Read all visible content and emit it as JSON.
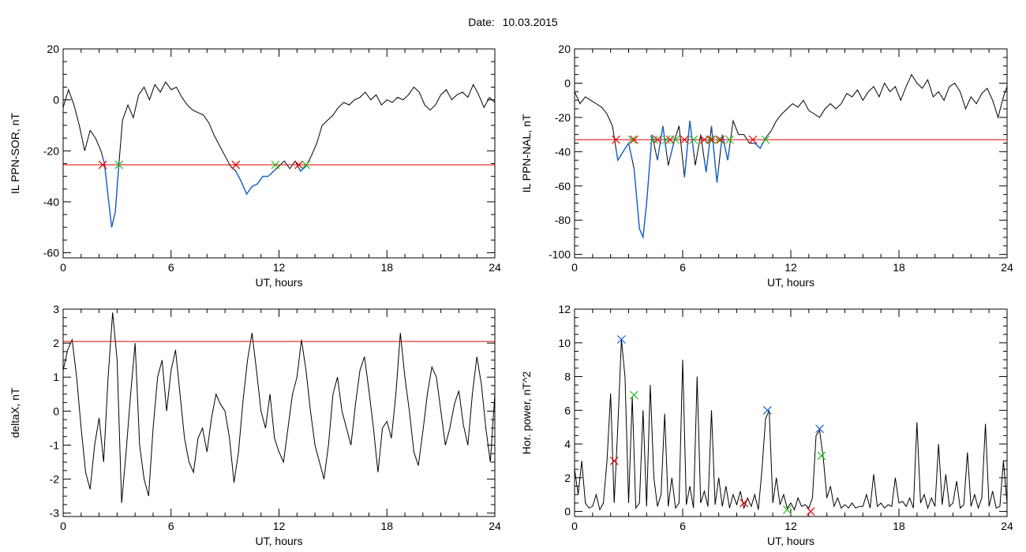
{
  "header": {
    "date_label": "Date:",
    "date_value": "10.03.2015"
  },
  "colors": {
    "data_line": "#000000",
    "event_segment": "#1560d0",
    "threshold": "#e00000",
    "start_marker": "#e00000",
    "end_marker": "#20c020",
    "peak_marker": "#1560d0"
  },
  "chart_data": [
    {
      "type": "line",
      "xlabel": "UT, hours",
      "ylabel": "IL PPN-SOR, nT",
      "xlim": [
        0,
        24
      ],
      "ylim": [
        -62,
        20
      ],
      "xticks": [
        0,
        6,
        12,
        18,
        24
      ],
      "yticks": [
        -60,
        -40,
        -20,
        0,
        20
      ],
      "threshold": -25.5,
      "series": [
        {
          "x": [
            0,
            0.3,
            0.6,
            0.9,
            1.2,
            1.5,
            1.8,
            2.1,
            2.3,
            2.5,
            2.7,
            2.9,
            3.1,
            3.3,
            3.6,
            3.9,
            4.2,
            4.5,
            4.8,
            5.1,
            5.4,
            5.7,
            6.0,
            6.3,
            6.6,
            6.9,
            7.2,
            7.5,
            7.8,
            8.1,
            8.4,
            8.7,
            9.0,
            9.3,
            9.6,
            9.9,
            10.2,
            10.5,
            10.8,
            11.1,
            11.4,
            11.7,
            12.0,
            12.3,
            12.6,
            12.9,
            13.2,
            13.5,
            13.8,
            14.1,
            14.4,
            14.7,
            15.0,
            15.3,
            15.6,
            15.9,
            16.2,
            16.5,
            16.8,
            17.1,
            17.4,
            17.7,
            18.0,
            18.3,
            18.6,
            18.9,
            19.2,
            19.5,
            19.8,
            20.1,
            20.4,
            20.7,
            21.0,
            21.3,
            21.6,
            21.9,
            22.2,
            22.5,
            22.8,
            23.1,
            23.4,
            23.7,
            24
          ],
          "y": [
            -3,
            4,
            -2,
            -10,
            -20,
            -12,
            -15,
            -20,
            -25,
            -38,
            -50,
            -44,
            -25,
            -8,
            -2,
            -7,
            2,
            5,
            0,
            6,
            3,
            7,
            4,
            5,
            1,
            -2,
            -4,
            -5,
            -6,
            -9,
            -14,
            -18,
            -22,
            -26,
            -28,
            -32,
            -37,
            -34,
            -33,
            -30,
            -30,
            -28,
            -26,
            -24,
            -27,
            -24,
            -28,
            -26,
            -22,
            -17,
            -10,
            -8,
            -6,
            -3,
            -1,
            -2,
            0,
            1,
            3,
            0,
            2,
            -2,
            0,
            -1,
            1,
            0,
            2,
            5,
            3,
            -2,
            -4,
            -2,
            2,
            4,
            0,
            2,
            3,
            1,
            6,
            2,
            -3,
            1,
            -1
          ]
        }
      ],
      "events": [
        {
          "start": 2.2,
          "end": 3.1
        },
        {
          "start": 9.6,
          "end": 11.8
        },
        {
          "start": 13.1,
          "end": 13.5
        }
      ]
    },
    {
      "type": "line",
      "xlabel": "UT, hours",
      "ylabel": "IL PPN-NAL, nT",
      "xlim": [
        0,
        24
      ],
      "ylim": [
        -102,
        20
      ],
      "xticks": [
        0,
        6,
        12,
        18,
        24
      ],
      "yticks": [
        -100,
        -80,
        -60,
        -40,
        -20,
        0,
        20
      ],
      "threshold": -33,
      "series": [
        {
          "x": [
            0,
            0.3,
            0.6,
            0.9,
            1.2,
            1.5,
            1.8,
            2.1,
            2.4,
            2.7,
            3.0,
            3.3,
            3.6,
            3.8,
            4.0,
            4.3,
            4.6,
            4.9,
            5.2,
            5.5,
            5.8,
            6.1,
            6.4,
            6.7,
            7.0,
            7.3,
            7.6,
            7.9,
            8.2,
            8.5,
            8.8,
            9.1,
            9.4,
            9.7,
            10.0,
            10.3,
            10.6,
            10.9,
            11.2,
            11.5,
            11.8,
            12.1,
            12.4,
            12.7,
            13.0,
            13.3,
            13.6,
            13.9,
            14.2,
            14.5,
            14.8,
            15.1,
            15.4,
            15.7,
            16.0,
            16.3,
            16.6,
            16.9,
            17.2,
            17.5,
            17.8,
            18.1,
            18.4,
            18.7,
            19.0,
            19.3,
            19.6,
            19.9,
            20.2,
            20.5,
            20.8,
            21.1,
            21.4,
            21.7,
            22.0,
            22.3,
            22.6,
            22.9,
            23.2,
            23.5,
            23.8,
            24
          ],
          "y": [
            -5,
            -12,
            -8,
            -10,
            -12,
            -14,
            -18,
            -25,
            -45,
            -40,
            -35,
            -50,
            -85,
            -90,
            -70,
            -30,
            -45,
            -25,
            -48,
            -35,
            -25,
            -55,
            -22,
            -48,
            -30,
            -52,
            -25,
            -58,
            -30,
            -45,
            -22,
            -30,
            -30,
            -35,
            -35,
            -38,
            -32,
            -28,
            -22,
            -18,
            -15,
            -12,
            -14,
            -10,
            -16,
            -18,
            -20,
            -15,
            -12,
            -15,
            -12,
            -6,
            -8,
            -4,
            -10,
            -5,
            -2,
            -8,
            0,
            -5,
            -2,
            -10,
            -2,
            5,
            0,
            -3,
            2,
            -8,
            -5,
            -10,
            -2,
            0,
            -5,
            -15,
            -8,
            -12,
            -6,
            -3,
            -10,
            -20,
            -8,
            -2
          ]
        }
      ],
      "events": [
        {
          "start": 2.3,
          "end": 3.2
        },
        {
          "start": 3.3,
          "end": 4.4
        },
        {
          "start": 4.6,
          "end": 5.1
        },
        {
          "start": 5.3,
          "end": 5.6
        },
        {
          "start": 6.1,
          "end": 6.6
        },
        {
          "start": 7.2,
          "end": 7.5
        },
        {
          "start": 7.6,
          "end": 8.0
        },
        {
          "start": 8.1,
          "end": 8.6
        },
        {
          "start": 9.9,
          "end": 10.6
        }
      ]
    },
    {
      "type": "line",
      "xlabel": "UT, hours",
      "ylabel": "deltaX, nT",
      "xlim": [
        0,
        24
      ],
      "ylim": [
        -3.1,
        3
      ],
      "xticks": [
        0,
        6,
        12,
        18,
        24
      ],
      "yticks": [
        -3,
        -2,
        -1,
        0,
        1,
        2,
        3
      ],
      "threshold": 2.05,
      "series": [
        {
          "x": [
            0,
            0.25,
            0.5,
            0.75,
            1.0,
            1.25,
            1.5,
            1.75,
            2.0,
            2.25,
            2.5,
            2.75,
            3.0,
            3.25,
            3.5,
            3.75,
            4.0,
            4.25,
            4.5,
            4.75,
            5.0,
            5.25,
            5.5,
            5.75,
            6.0,
            6.25,
            6.5,
            6.75,
            7.0,
            7.25,
            7.5,
            7.75,
            8.0,
            8.25,
            8.5,
            8.75,
            9.0,
            9.25,
            9.5,
            9.75,
            10.0,
            10.25,
            10.5,
            10.75,
            11.0,
            11.25,
            11.5,
            11.75,
            12.0,
            12.25,
            12.5,
            12.75,
            13.0,
            13.25,
            13.5,
            13.75,
            14.0,
            14.25,
            14.5,
            14.75,
            15.0,
            15.25,
            15.5,
            15.75,
            16.0,
            16.25,
            16.5,
            16.75,
            17.0,
            17.25,
            17.5,
            17.75,
            18.0,
            18.25,
            18.5,
            18.75,
            19.0,
            19.25,
            19.5,
            19.75,
            20.0,
            20.25,
            20.5,
            20.75,
            21.0,
            21.25,
            21.5,
            21.75,
            22.0,
            22.25,
            22.5,
            22.75,
            23.0,
            23.25,
            23.5,
            23.75,
            24
          ],
          "y": [
            1.2,
            1.8,
            2.1,
            1.0,
            -0.5,
            -1.8,
            -2.3,
            -1.0,
            -0.2,
            -1.5,
            1.0,
            2.9,
            1.5,
            -2.7,
            -1.2,
            0.5,
            2.0,
            -1.0,
            -2.0,
            -2.5,
            -0.5,
            1.0,
            1.5,
            0.0,
            1.2,
            1.8,
            0.5,
            -0.8,
            -1.5,
            -1.8,
            -0.8,
            -0.5,
            -1.2,
            -0.2,
            0.5,
            0.2,
            0.0,
            -0.8,
            -2.1,
            -1.2,
            0.3,
            1.5,
            2.3,
            1.2,
            0.0,
            -0.5,
            0.5,
            -0.8,
            -1.2,
            -1.5,
            -0.5,
            0.5,
            1.0,
            2.1,
            1.2,
            0.0,
            -1.0,
            -1.5,
            -2.0,
            -1.0,
            0.5,
            1.0,
            0.0,
            -0.5,
            -1.0,
            0.2,
            1.2,
            1.6,
            0.6,
            -0.5,
            -1.8,
            -0.5,
            -0.3,
            -0.8,
            0.5,
            2.3,
            1.0,
            0.0,
            -1.2,
            -1.6,
            -0.6,
            0.5,
            1.3,
            1.0,
            0.0,
            -1.0,
            -0.5,
            0.2,
            0.6,
            -0.4,
            -1.0,
            0.5,
            1.6,
            0.8,
            -0.5,
            -1.5,
            0.5
          ]
        }
      ]
    },
    {
      "type": "line",
      "xlabel": "UT, hours",
      "ylabel": "Hor. power, nT^2",
      "xlim": [
        0,
        24
      ],
      "ylim": [
        -0.3,
        12
      ],
      "xticks": [
        0,
        6,
        12,
        18,
        24
      ],
      "yticks": [
        0,
        2,
        4,
        6,
        8,
        10,
        12
      ],
      "series": [
        {
          "x": [
            0,
            0.2,
            0.4,
            0.6,
            0.8,
            1.0,
            1.2,
            1.4,
            1.6,
            1.8,
            2.0,
            2.2,
            2.4,
            2.6,
            2.8,
            3.0,
            3.2,
            3.4,
            3.6,
            3.8,
            4.0,
            4.2,
            4.4,
            4.6,
            4.8,
            5.0,
            5.2,
            5.4,
            5.6,
            5.8,
            6.0,
            6.2,
            6.4,
            6.6,
            6.8,
            7.0,
            7.2,
            7.4,
            7.6,
            7.8,
            8.0,
            8.2,
            8.4,
            8.6,
            8.8,
            9.0,
            9.2,
            9.4,
            9.6,
            9.8,
            10.0,
            10.2,
            10.4,
            10.6,
            10.8,
            11.0,
            11.2,
            11.4,
            11.6,
            11.8,
            12.0,
            12.2,
            12.4,
            12.6,
            12.8,
            13.0,
            13.2,
            13.4,
            13.6,
            13.8,
            14.0,
            14.2,
            14.4,
            14.6,
            14.8,
            15.0,
            15.2,
            15.4,
            15.6,
            15.8,
            16.0,
            16.2,
            16.4,
            16.6,
            16.8,
            17.0,
            17.2,
            17.4,
            17.6,
            17.8,
            18.0,
            18.2,
            18.4,
            18.6,
            18.8,
            19.0,
            19.2,
            19.4,
            19.6,
            19.8,
            20.0,
            20.2,
            20.4,
            20.6,
            20.8,
            21.0,
            21.2,
            21.4,
            21.6,
            21.8,
            22.0,
            22.2,
            22.4,
            22.6,
            22.8,
            23.0,
            23.2,
            23.4,
            23.6,
            23.8,
            24
          ],
          "y": [
            2.5,
            1.0,
            3.0,
            0.5,
            0.2,
            0.3,
            1.0,
            0.1,
            0.5,
            3.0,
            7.0,
            0.5,
            5.0,
            10.2,
            8.0,
            0.5,
            6.8,
            0.2,
            0.5,
            6.0,
            0.3,
            7.5,
            2.0,
            0.3,
            1.0,
            5.8,
            0.3,
            2.0,
            0.2,
            0.5,
            9.0,
            0.4,
            1.5,
            0.2,
            8.0,
            0.5,
            1.2,
            0.3,
            6.0,
            0.4,
            2.0,
            0.3,
            1.5,
            0.2,
            1.0,
            0.4,
            1.2,
            0.2,
            0.8,
            0.3,
            1.0,
            0.1,
            2.5,
            5.5,
            6.0,
            0.5,
            2.0,
            0.4,
            1.0,
            0.2,
            0.5,
            0.1,
            0.8,
            0.3,
            0.4,
            0.2,
            0.8,
            4.5,
            4.8,
            3.2,
            0.8,
            1.5,
            0.3,
            0.8,
            0.2,
            0.4,
            0.2,
            0.5,
            0.2,
            0.3,
            0.3,
            1.0,
            0.2,
            2.2,
            0.3,
            0.5,
            0.2,
            0.4,
            0.3,
            2.0,
            0.5,
            0.6,
            0.3,
            0.8,
            0.2,
            5.3,
            0.5,
            1.0,
            0.2,
            0.8,
            0.3,
            4.0,
            0.4,
            2.2,
            0.3,
            0.5,
            1.8,
            0.2,
            0.4,
            3.5,
            0.3,
            1.0,
            0.2,
            0.8,
            5.2,
            0.3,
            1.2,
            0.2,
            0.3,
            3.0,
            0.5
          ]
        }
      ],
      "markers": [
        {
          "x": 2.2,
          "y": 3.0,
          "kind": "start"
        },
        {
          "x": 2.6,
          "y": 10.2,
          "kind": "peak"
        },
        {
          "x": 3.3,
          "y": 6.9,
          "kind": "end"
        },
        {
          "x": 9.4,
          "y": 0.5,
          "kind": "start"
        },
        {
          "x": 10.7,
          "y": 6.0,
          "kind": "peak"
        },
        {
          "x": 11.8,
          "y": 0.1,
          "kind": "end"
        },
        {
          "x": 13.1,
          "y": 0.0,
          "kind": "start"
        },
        {
          "x": 13.6,
          "y": 4.9,
          "kind": "peak"
        },
        {
          "x": 13.7,
          "y": 3.3,
          "kind": "end"
        }
      ]
    }
  ]
}
